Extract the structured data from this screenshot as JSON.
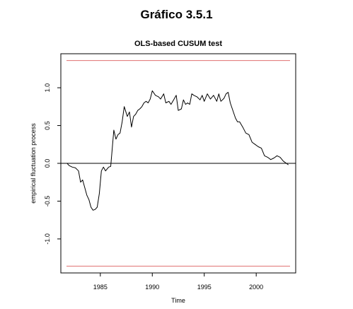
{
  "figure_title": "Gráfico 3.5.1",
  "chart_data": {
    "type": "line",
    "title": "OLS-based CUSUM test",
    "xlabel": "Time",
    "ylabel": "empirical fluctuation process",
    "xlim": [
      1981.2,
      2003.8
    ],
    "ylim": [
      -1.45,
      1.45
    ],
    "x_ticks": [
      1985,
      1990,
      1995,
      2000
    ],
    "x_tick_labels": [
      "1985",
      "1990",
      "1995",
      "2000"
    ],
    "y_ticks": [
      -1.0,
      -0.5,
      0.0,
      0.5,
      1.0
    ],
    "y_tick_labels": [
      "-1.0",
      "-0.5",
      "0.0",
      "0.5",
      "1.0"
    ],
    "grid": false,
    "colors": {
      "series": "#000000",
      "boundary": "#e07070",
      "zero_line": "#000000"
    },
    "boundaries": {
      "upper": 1.36,
      "lower": -1.36
    },
    "zero_line": 0.0,
    "series": [
      {
        "x": [
          1981.8,
          1982.0,
          1982.3,
          1982.6,
          1982.9,
          1983.1,
          1983.3,
          1983.5,
          1983.7,
          1983.9,
          1984.1,
          1984.3,
          1984.5,
          1984.7,
          1984.9,
          1985.1,
          1985.3,
          1985.5,
          1985.8,
          1986.0,
          1986.3,
          1986.5,
          1986.7,
          1986.9,
          1987.1,
          1987.3,
          1987.6,
          1987.8,
          1988.0,
          1988.2,
          1988.4,
          1988.6,
          1988.8,
          1989.0,
          1989.2,
          1989.4,
          1989.6,
          1989.8,
          1990.0,
          1990.3,
          1990.6,
          1990.8,
          1991.1,
          1991.3,
          1991.6,
          1991.8,
          1992.1,
          1992.3,
          1992.5,
          1992.8,
          1993.0,
          1993.2,
          1993.4,
          1993.6,
          1993.8,
          1994.0,
          1994.3,
          1994.6,
          1994.8,
          1995.0,
          1995.3,
          1995.6,
          1995.9,
          1996.2,
          1996.4,
          1996.6,
          1996.9,
          1997.1,
          1997.3,
          1997.5,
          1997.7,
          1998.0,
          1998.2,
          1998.4,
          1998.7,
          1999.0,
          1999.3,
          1999.6,
          1999.9,
          2000.2,
          2000.5,
          2000.8,
          2001.1,
          2001.4,
          2001.7,
          2002.0,
          2002.3,
          2002.6,
          2002.9,
          2003.1
        ],
        "y": [
          0.0,
          -0.03,
          -0.05,
          -0.06,
          -0.1,
          -0.25,
          -0.22,
          -0.32,
          -0.42,
          -0.48,
          -0.58,
          -0.62,
          -0.61,
          -0.58,
          -0.4,
          -0.1,
          -0.05,
          -0.1,
          -0.05,
          -0.04,
          0.44,
          0.32,
          0.38,
          0.4,
          0.55,
          0.75,
          0.62,
          0.68,
          0.48,
          0.62,
          0.65,
          0.7,
          0.72,
          0.75,
          0.8,
          0.82,
          0.8,
          0.85,
          0.96,
          0.9,
          0.88,
          0.85,
          0.92,
          0.8,
          0.82,
          0.78,
          0.85,
          0.9,
          0.7,
          0.72,
          0.84,
          0.78,
          0.8,
          0.78,
          0.92,
          0.9,
          0.88,
          0.84,
          0.9,
          0.82,
          0.92,
          0.85,
          0.9,
          0.82,
          0.92,
          0.82,
          0.86,
          0.92,
          0.94,
          0.8,
          0.72,
          0.6,
          0.55,
          0.55,
          0.48,
          0.4,
          0.38,
          0.28,
          0.25,
          0.22,
          0.2,
          0.1,
          0.08,
          0.05,
          0.07,
          0.1,
          0.08,
          0.03,
          0.0,
          -0.02
        ]
      }
    ]
  }
}
